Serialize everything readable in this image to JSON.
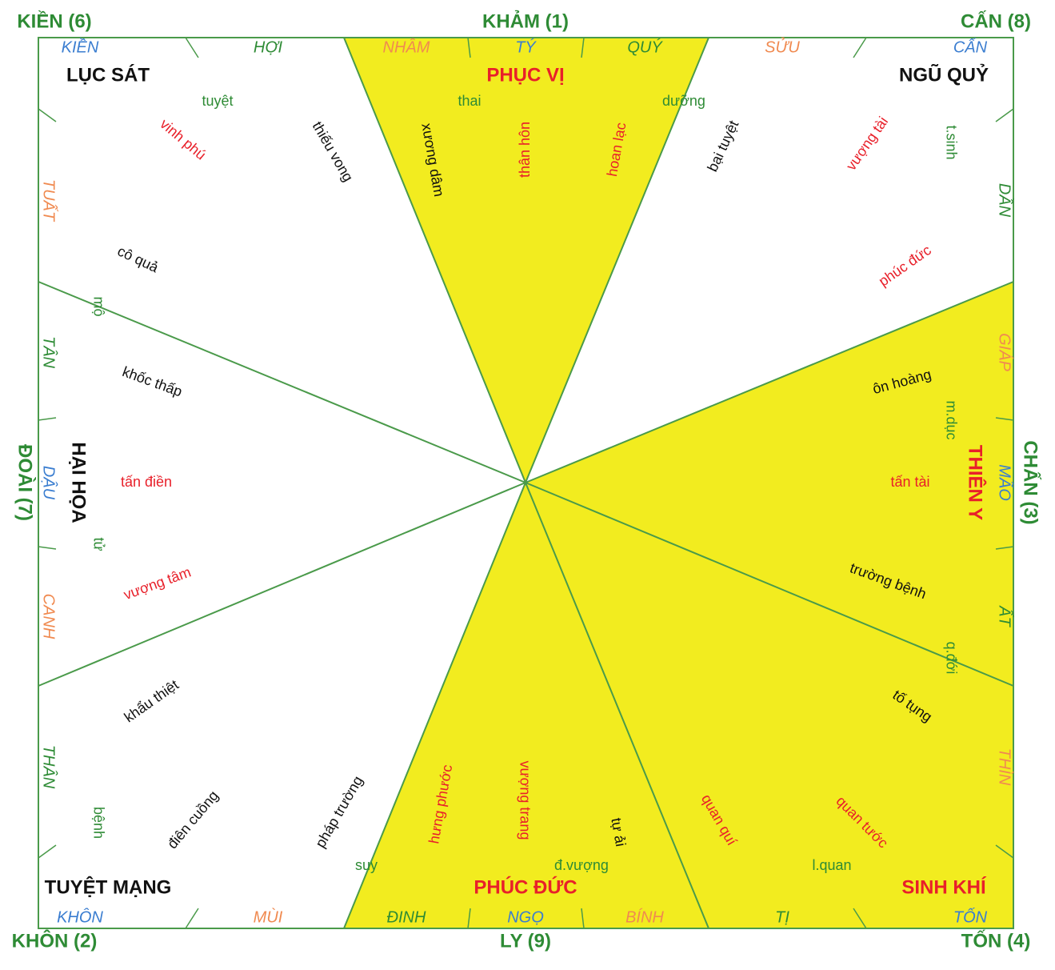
{
  "outer_labels": [
    "KIỀN (6)",
    "KHẢM (1)",
    "CẤN (8)",
    "ĐOÀI (7)",
    "CHẤN (3)",
    "KHÔN (2)",
    "LY (9)",
    "TỐN (4)"
  ],
  "zone_labels": [
    "LỤC SÁT",
    "PHỤC VỊ",
    "NGŨ QUỶ",
    "HẠI HỌA",
    "THIÊN Y",
    "TUYỆT MẠNG",
    "PHÚC ĐỨC",
    "SINH KHÍ"
  ],
  "mountains": [
    "KIỀN",
    "HỢI",
    "NHÂM",
    "TÝ",
    "QUÝ",
    "SỬU",
    "CẤN",
    "DẦN",
    "GIÁP",
    "MÃO",
    "ẤT",
    "THÌN",
    "TỐN",
    "TỊ",
    "BÍNH",
    "NGỌ",
    "ĐINH",
    "MÙI",
    "KHÔN",
    "THÂN",
    "CANH",
    "DẬU",
    "TÂN",
    "TUẤT"
  ],
  "words": [
    "tuyệt",
    "thai",
    "dưỡng",
    "vinh phú",
    "thiếu vong",
    "xương dâm",
    "thân hôn",
    "hoan lạc",
    "bại tuyệt",
    "vượng tài",
    "t.sinh",
    "cô quả",
    "phúc đức",
    "mộ",
    "khốc thấp",
    "ôn hoàng",
    "m.dục",
    "tấn điền",
    "tấn tài",
    "tử",
    "vượng tâm",
    "trường bệnh",
    "q.đới",
    "khẩu thiệt",
    "tố tụng",
    "bệnh",
    "điên cuồng",
    "pháp trường",
    "hưng phước",
    "vượng trang",
    "tự ải",
    "quan quí",
    "quan tước",
    "suy",
    "đ.vượng",
    "l.quan"
  ]
}
